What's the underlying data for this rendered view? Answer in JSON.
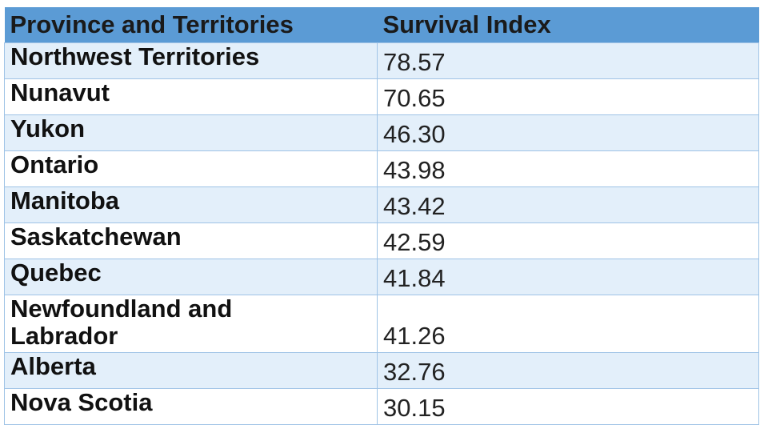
{
  "table": {
    "headers": [
      "Province and Territories",
      "Survival Index"
    ],
    "rows": [
      {
        "name": "Northwest Territories",
        "value": "78.57"
      },
      {
        "name": "Nunavut",
        "value": "70.65"
      },
      {
        "name": "Yukon",
        "value": "46.30"
      },
      {
        "name": "Ontario",
        "value": "43.98"
      },
      {
        "name": "Manitoba",
        "value": "43.42"
      },
      {
        "name": "Saskatchewan",
        "value": "42.59"
      },
      {
        "name": "Quebec",
        "value": "41.84"
      },
      {
        "name": "Newfoundland and Labrador",
        "value": "41.26"
      },
      {
        "name": "Alberta",
        "value": "32.76"
      },
      {
        "name": "Nova Scotia",
        "value": "30.15"
      }
    ]
  },
  "colors": {
    "header_bg": "#5b9bd5",
    "row_alt_bg": "#e3effa",
    "row_bg": "#ffffff",
    "border": "#9fc3e6"
  }
}
